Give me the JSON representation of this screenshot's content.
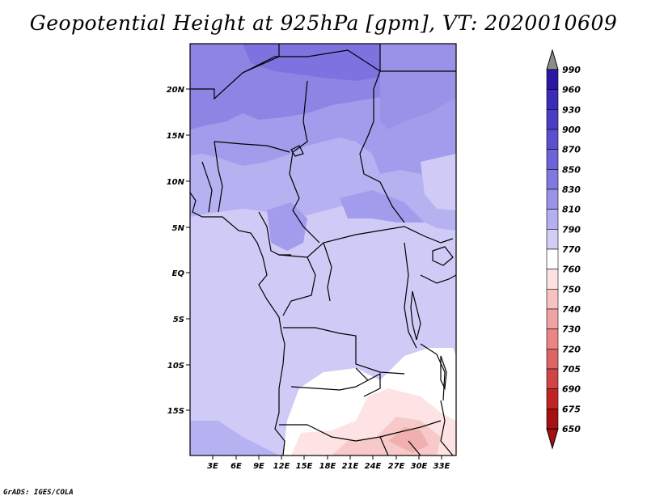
{
  "title": "Geopotential Height at 925hPa [gpm], VT: 2020010609",
  "footer": "GrADS: IGES/COLA",
  "map": {
    "lat_labels": [
      "20N",
      "15N",
      "10N",
      "5N",
      "EQ",
      "5S",
      "10S",
      "15S"
    ],
    "lon_labels": [
      "3E",
      "6E",
      "9E",
      "12E",
      "15E",
      "18E",
      "21E",
      "24E",
      "27E",
      "30E",
      "33E"
    ]
  },
  "colorbar": {
    "levels": [
      "990",
      "960",
      "930",
      "900",
      "870",
      "850",
      "830",
      "810",
      "790",
      "770",
      "760",
      "750",
      "740",
      "730",
      "720",
      "705",
      "690",
      "675",
      "650"
    ],
    "colors": [
      "#8c8c8c",
      "#2a17a6",
      "#3a2bb8",
      "#4a3cc4",
      "#5b4fcf",
      "#6c63d8",
      "#8279e0",
      "#9a93e8",
      "#b4aff0",
      "#d0cdf6",
      "#ffffff",
      "#fde0e0",
      "#f8c2c2",
      "#f1a3a3",
      "#e98585",
      "#df6464",
      "#d24444",
      "#c02525",
      "#a51010"
    ]
  },
  "colors": {
    "fill_high": "#7d72df",
    "fill_mid": "#b6b1f1",
    "fill_low": "#cfcbf6",
    "fill_min": "#ffffff",
    "fill_warm": "#f7d4d4"
  }
}
